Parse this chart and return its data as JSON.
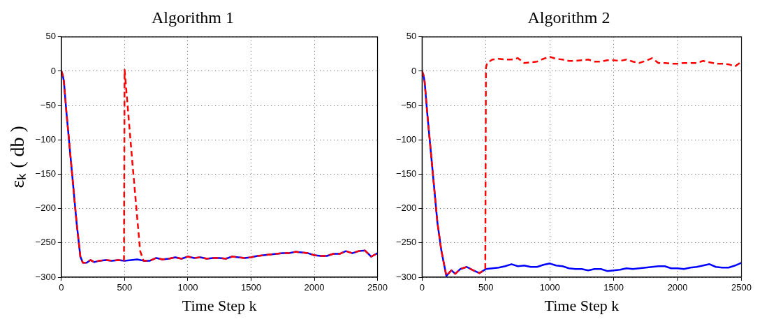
{
  "chart_data": [
    {
      "type": "line",
      "title": "Algorithm 1",
      "xlabel": "Time Step k",
      "ylabel": "εₖ ( db )",
      "xlim": [
        0,
        2500
      ],
      "xticks": [
        0,
        500,
        1000,
        1500,
        2000,
        2500
      ],
      "ylim": [
        -300,
        50
      ],
      "yticks": [
        -300,
        -250,
        -200,
        -150,
        -100,
        -50,
        0,
        50
      ],
      "grid": true,
      "marker": "none",
      "series": [
        {
          "color": "#0000ff",
          "line_style": "solid",
          "x": [
            0,
            10,
            20,
            40,
            80,
            120,
            150,
            170,
            200,
            230,
            260,
            300,
            350,
            400,
            450,
            500,
            550,
            600,
            650,
            700,
            750,
            800,
            850,
            900,
            950,
            1000,
            1050,
            1100,
            1150,
            1200,
            1250,
            1300,
            1350,
            1400,
            1450,
            1500,
            1550,
            1600,
            1650,
            1700,
            1750,
            1800,
            1850,
            1900,
            1950,
            2000,
            2050,
            2100,
            2150,
            2200,
            2250,
            2300,
            2350,
            2400,
            2450,
            2500
          ],
          "values": [
            0,
            -5,
            -15,
            -60,
            -140,
            -220,
            -270,
            -279,
            -279,
            -275,
            -278,
            -276,
            -275,
            -276,
            -275,
            -276,
            -275,
            -274,
            -276,
            -276,
            -272,
            -274,
            -273,
            -271,
            -273,
            -270,
            -272,
            -271,
            -273,
            -272,
            -272,
            -273,
            -270,
            -271,
            -272,
            -271,
            -269,
            -268,
            -267,
            -266,
            -265,
            -265,
            -263,
            -264,
            -265,
            -268,
            -269,
            -269,
            -266,
            -266,
            -262,
            -265,
            -262,
            -261,
            -270,
            -265
          ]
        },
        {
          "color": "#ff0000",
          "line_style": "dashed",
          "x": [
            0,
            10,
            20,
            40,
            80,
            120,
            150,
            170,
            200,
            230,
            260,
            300,
            350,
            400,
            450,
            495,
            500,
            560,
            623,
            650,
            700,
            750,
            800,
            850,
            900,
            950,
            1000,
            1050,
            1100,
            1150,
            1200,
            1250,
            1300,
            1350,
            1400,
            1450,
            1500,
            1550,
            1600,
            1650,
            1700,
            1750,
            1800,
            1850,
            1900,
            1950,
            2000,
            2050,
            2100,
            2150,
            2200,
            2250,
            2300,
            2350,
            2400,
            2450,
            2500
          ],
          "values": [
            0,
            -5,
            -15,
            -60,
            -140,
            -220,
            -270,
            -279,
            -279,
            -275,
            -278,
            -276,
            -275,
            -276,
            -275,
            -276,
            2,
            -130,
            -262,
            -276,
            -276,
            -272,
            -274,
            -273,
            -271,
            -273,
            -270,
            -272,
            -271,
            -273,
            -272,
            -272,
            -273,
            -270,
            -271,
            -272,
            -271,
            -269,
            -268,
            -267,
            -266,
            -265,
            -265,
            -263,
            -264,
            -265,
            -268,
            -269,
            -269,
            -266,
            -266,
            -262,
            -265,
            -262,
            -261,
            -270,
            -265
          ]
        }
      ]
    },
    {
      "type": "line",
      "title": "Algorithm 2",
      "xlabel": "Time Step k",
      "xlim": [
        0,
        2500
      ],
      "xticks": [
        0,
        500,
        1000,
        1500,
        2000,
        2500
      ],
      "ylim": [
        -300,
        50
      ],
      "yticks": [
        -300,
        -250,
        -200,
        -150,
        -100,
        -50,
        0,
        50
      ],
      "grid": true,
      "marker": "none",
      "series": [
        {
          "color": "#0000ff",
          "line_style": "solid",
          "x": [
            0,
            10,
            20,
            40,
            80,
            120,
            150,
            190,
            230,
            260,
            300,
            350,
            400,
            450,
            500,
            550,
            600,
            650,
            700,
            750,
            800,
            850,
            900,
            950,
            1000,
            1050,
            1100,
            1150,
            1200,
            1250,
            1300,
            1350,
            1400,
            1450,
            1500,
            1550,
            1600,
            1650,
            1700,
            1750,
            1800,
            1850,
            1900,
            1950,
            2000,
            2050,
            2100,
            2150,
            2200,
            2250,
            2300,
            2350,
            2400,
            2450,
            2500
          ],
          "values": [
            0,
            -5,
            -15,
            -60,
            -140,
            -220,
            -260,
            -298,
            -290,
            -295,
            -288,
            -285,
            -290,
            -294,
            -288,
            -287,
            -286,
            -284,
            -281,
            -284,
            -283,
            -285,
            -285,
            -282,
            -280,
            -283,
            -284,
            -287,
            -288,
            -288,
            -290,
            -288,
            -288,
            -291,
            -290,
            -289,
            -287,
            -288,
            -287,
            -286,
            -285,
            -284,
            -284,
            -287,
            -287,
            -288,
            -286,
            -285,
            -283,
            -281,
            -285,
            -286,
            -286,
            -283,
            -279
          ]
        },
        {
          "color": "#ff0000",
          "line_style": "dashed",
          "x": [
            0,
            10,
            20,
            40,
            80,
            120,
            150,
            190,
            230,
            260,
            300,
            350,
            400,
            450,
            495,
            500,
            510,
            550,
            600,
            650,
            700,
            750,
            800,
            850,
            900,
            950,
            1000,
            1050,
            1100,
            1150,
            1200,
            1250,
            1300,
            1350,
            1400,
            1450,
            1500,
            1550,
            1600,
            1650,
            1700,
            1750,
            1800,
            1850,
            1900,
            1950,
            2000,
            2050,
            2100,
            2150,
            2200,
            2250,
            2300,
            2350,
            2400,
            2450,
            2500
          ],
          "values": [
            0,
            -5,
            -15,
            -60,
            -140,
            -220,
            -260,
            -298,
            -290,
            -295,
            -288,
            -285,
            -290,
            -294,
            -288,
            5,
            12,
            17,
            18,
            17,
            17,
            19,
            12,
            13,
            14,
            18,
            21,
            18,
            17,
            15,
            15,
            16,
            17,
            14,
            14,
            16,
            16,
            15,
            17,
            14,
            12,
            15,
            19,
            12,
            12,
            11,
            11,
            12,
            12,
            12,
            15,
            13,
            11,
            11,
            10,
            7,
            14
          ]
        }
      ]
    }
  ]
}
